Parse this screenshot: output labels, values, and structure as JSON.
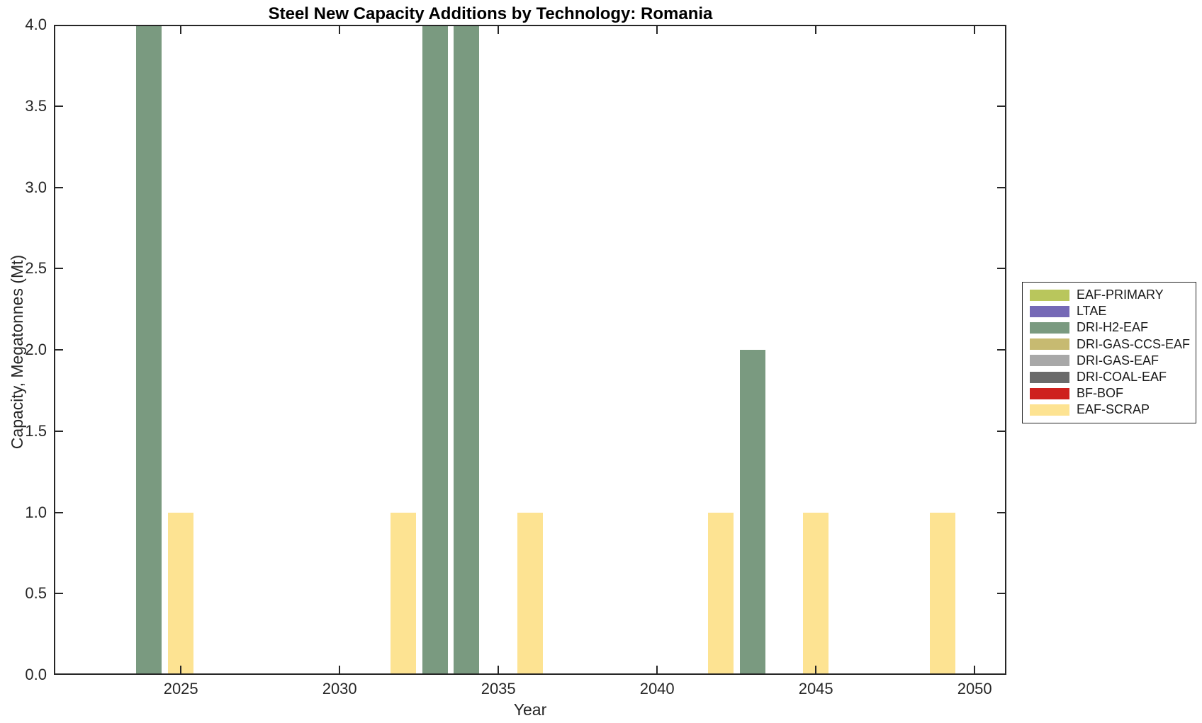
{
  "chart_data": {
    "type": "bar",
    "title": "Steel New Capacity Additions by Technology: Romania",
    "xlabel": "Year",
    "ylabel": "Capacity, Megatonnes (Mt)",
    "xlim": [
      2021,
      2051
    ],
    "ylim": [
      0,
      4
    ],
    "x_ticks": [
      {
        "value": 2025,
        "label": "2025"
      },
      {
        "value": 2030,
        "label": "2030"
      },
      {
        "value": 2035,
        "label": "2035"
      },
      {
        "value": 2040,
        "label": "2040"
      },
      {
        "value": 2045,
        "label": "2045"
      },
      {
        "value": 2050,
        "label": "2050"
      }
    ],
    "y_ticks": [
      {
        "value": 0,
        "label": "0.0"
      },
      {
        "value": 0.5,
        "label": "0.5"
      },
      {
        "value": 1,
        "label": "1.0"
      },
      {
        "value": 1.5,
        "label": "1.5"
      },
      {
        "value": 2,
        "label": "2.0"
      },
      {
        "value": 2.5,
        "label": "2.5"
      },
      {
        "value": 3,
        "label": "3.0"
      },
      {
        "value": 3.5,
        "label": "3.5"
      },
      {
        "value": 4,
        "label": "4.0"
      }
    ],
    "bar_width_years": 0.8,
    "grid": false,
    "legend_position": "right-outside",
    "axis_color": "#262626",
    "background_color": "#ffffff",
    "series": [
      {
        "name": "EAF-PRIMARY",
        "color": "#b9c65c",
        "points": []
      },
      {
        "name": "LTAE",
        "color": "#7569b6",
        "points": []
      },
      {
        "name": "DRI-H2-EAF",
        "color": "#7a9a80",
        "points": [
          {
            "year": 2024,
            "value": 4.0
          },
          {
            "year": 2033,
            "value": 4.0
          },
          {
            "year": 2034,
            "value": 4.0
          },
          {
            "year": 2043,
            "value": 2.0
          }
        ]
      },
      {
        "name": "DRI-GAS-CCS-EAF",
        "color": "#c7ba71",
        "points": []
      },
      {
        "name": "DRI-GAS-EAF",
        "color": "#a8a8a8",
        "points": []
      },
      {
        "name": "DRI-COAL-EAF",
        "color": "#6a6a6a",
        "points": []
      },
      {
        "name": "BF-BOF",
        "color": "#ce201d",
        "points": []
      },
      {
        "name": "EAF-SCRAP",
        "color": "#fde392",
        "points": [
          {
            "year": 2025,
            "value": 1.0
          },
          {
            "year": 2032,
            "value": 1.0
          },
          {
            "year": 2036,
            "value": 1.0
          },
          {
            "year": 2042,
            "value": 1.0
          },
          {
            "year": 2045,
            "value": 1.0
          },
          {
            "year": 2049,
            "value": 1.0
          }
        ]
      }
    ]
  }
}
